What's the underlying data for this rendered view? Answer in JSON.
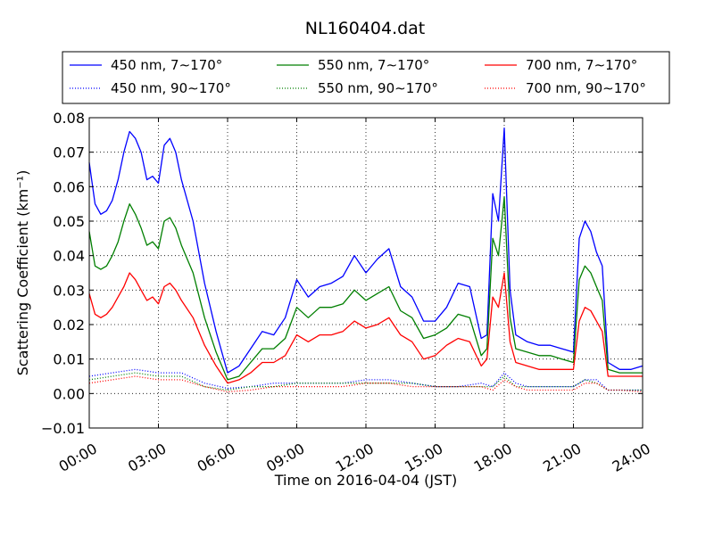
{
  "chart_data": {
    "type": "line",
    "title": "NL160404.dat",
    "xlabel": "Time on 2016-04-04 (JST)",
    "ylabel": "Scattering Coefficient (km⁻¹)",
    "x_unit": "hours",
    "xlim": [
      0,
      24
    ],
    "ylim": [
      -0.01,
      0.08
    ],
    "x_ticks": [
      {
        "value": 0,
        "label": "00:00"
      },
      {
        "value": 3,
        "label": "03:00"
      },
      {
        "value": 6,
        "label": "06:00"
      },
      {
        "value": 9,
        "label": "09:00"
      },
      {
        "value": 12,
        "label": "12:00"
      },
      {
        "value": 15,
        "label": "15:00"
      },
      {
        "value": 18,
        "label": "18:00"
      },
      {
        "value": 21,
        "label": "21:00"
      },
      {
        "value": 24,
        "label": "24:00"
      }
    ],
    "y_ticks": [
      {
        "value": -0.01,
        "label": "−0.01"
      },
      {
        "value": 0.0,
        "label": "0.00"
      },
      {
        "value": 0.01,
        "label": "0.01"
      },
      {
        "value": 0.02,
        "label": "0.02"
      },
      {
        "value": 0.03,
        "label": "0.03"
      },
      {
        "value": 0.04,
        "label": "0.04"
      },
      {
        "value": 0.05,
        "label": "0.05"
      },
      {
        "value": 0.06,
        "label": "0.06"
      },
      {
        "value": 0.07,
        "label": "0.07"
      },
      {
        "value": 0.08,
        "label": "0.08"
      }
    ],
    "grid": true,
    "legend": "top-outside",
    "series": [
      {
        "name": "450 nm, 7∼170°",
        "color": "#0000ff",
        "style": "solid",
        "x": [
          0,
          0.25,
          0.5,
          0.75,
          1,
          1.25,
          1.5,
          1.75,
          2,
          2.25,
          2.5,
          2.75,
          3,
          3.25,
          3.5,
          3.75,
          4,
          4.5,
          5,
          5.5,
          6,
          6.5,
          7,
          7.5,
          8,
          8.5,
          9,
          9.5,
          10,
          10.5,
          11,
          11.5,
          12,
          12.5,
          13,
          13.5,
          14,
          14.5,
          15,
          15.5,
          16,
          16.5,
          17,
          17.25,
          17.5,
          17.75,
          18,
          18.25,
          18.5,
          19,
          19.5,
          20,
          20.5,
          21,
          21.25,
          21.5,
          21.75,
          22,
          22.25,
          22.5,
          23,
          23.5,
          24
        ],
        "y": [
          0.067,
          0.055,
          0.052,
          0.053,
          0.056,
          0.062,
          0.07,
          0.076,
          0.074,
          0.07,
          0.062,
          0.063,
          0.061,
          0.072,
          0.074,
          0.07,
          0.062,
          0.05,
          0.032,
          0.018,
          0.006,
          0.008,
          0.013,
          0.018,
          0.017,
          0.022,
          0.033,
          0.028,
          0.031,
          0.032,
          0.034,
          0.04,
          0.035,
          0.039,
          0.042,
          0.031,
          0.028,
          0.021,
          0.021,
          0.025,
          0.032,
          0.031,
          0.016,
          0.017,
          0.058,
          0.05,
          0.077,
          0.03,
          0.017,
          0.015,
          0.014,
          0.014,
          0.013,
          0.012,
          0.045,
          0.05,
          0.047,
          0.041,
          0.037,
          0.009,
          0.007,
          0.007,
          0.008
        ]
      },
      {
        "name": "450 nm, 90∼170°",
        "color": "#0000ff",
        "style": "dotted",
        "x": [
          0,
          1,
          2,
          3,
          4,
          5,
          6,
          7,
          8,
          9,
          10,
          11,
          12,
          13,
          14,
          15,
          16,
          17,
          17.5,
          18,
          18.5,
          19,
          20,
          21,
          21.5,
          22,
          22.5,
          23,
          24
        ],
        "y": [
          0.005,
          0.006,
          0.007,
          0.006,
          0.006,
          0.003,
          0.0015,
          0.002,
          0.003,
          0.003,
          0.003,
          0.003,
          0.004,
          0.004,
          0.003,
          0.002,
          0.002,
          0.003,
          0.002,
          0.006,
          0.003,
          0.002,
          0.002,
          0.002,
          0.004,
          0.004,
          0.001,
          0.001,
          0.001
        ]
      },
      {
        "name": "550 nm, 7∼170°",
        "color": "#007f00",
        "style": "solid",
        "x": [
          0,
          0.25,
          0.5,
          0.75,
          1,
          1.25,
          1.5,
          1.75,
          2,
          2.25,
          2.5,
          2.75,
          3,
          3.25,
          3.5,
          3.75,
          4,
          4.5,
          5,
          5.5,
          6,
          6.5,
          7,
          7.5,
          8,
          8.5,
          9,
          9.5,
          10,
          10.5,
          11,
          11.5,
          12,
          12.5,
          13,
          13.5,
          14,
          14.5,
          15,
          15.5,
          16,
          16.5,
          17,
          17.25,
          17.5,
          17.75,
          18,
          18.25,
          18.5,
          19,
          19.5,
          20,
          20.5,
          21,
          21.25,
          21.5,
          21.75,
          22,
          22.25,
          22.5,
          23,
          23.5,
          24
        ],
        "y": [
          0.047,
          0.037,
          0.036,
          0.037,
          0.04,
          0.044,
          0.05,
          0.055,
          0.052,
          0.048,
          0.043,
          0.044,
          0.042,
          0.05,
          0.051,
          0.048,
          0.043,
          0.035,
          0.022,
          0.012,
          0.004,
          0.005,
          0.009,
          0.013,
          0.013,
          0.016,
          0.025,
          0.022,
          0.025,
          0.025,
          0.026,
          0.03,
          0.027,
          0.029,
          0.031,
          0.024,
          0.022,
          0.016,
          0.017,
          0.019,
          0.023,
          0.022,
          0.011,
          0.013,
          0.045,
          0.04,
          0.057,
          0.022,
          0.013,
          0.012,
          0.011,
          0.011,
          0.01,
          0.009,
          0.033,
          0.037,
          0.035,
          0.031,
          0.027,
          0.007,
          0.006,
          0.006,
          0.006
        ]
      },
      {
        "name": "550 nm, 90∼170°",
        "color": "#007f00",
        "style": "dotted",
        "x": [
          0,
          1,
          2,
          3,
          4,
          5,
          6,
          7,
          8,
          9,
          10,
          11,
          12,
          13,
          14,
          15,
          16,
          17,
          17.5,
          18,
          18.5,
          19,
          20,
          21,
          21.5,
          22,
          22.5,
          23,
          24
        ],
        "y": [
          0.004,
          0.005,
          0.006,
          0.005,
          0.005,
          0.002,
          0.001,
          0.002,
          0.002,
          0.003,
          0.003,
          0.003,
          0.003,
          0.003,
          0.003,
          0.002,
          0.002,
          0.002,
          0.002,
          0.005,
          0.002,
          0.002,
          0.002,
          0.002,
          0.004,
          0.003,
          0.001,
          0.001,
          0.001
        ]
      },
      {
        "name": "700 nm, 7∼170°",
        "color": "#ff0000",
        "style": "solid",
        "x": [
          0,
          0.25,
          0.5,
          0.75,
          1,
          1.25,
          1.5,
          1.75,
          2,
          2.25,
          2.5,
          2.75,
          3,
          3.25,
          3.5,
          3.75,
          4,
          4.5,
          5,
          5.5,
          6,
          6.5,
          7,
          7.5,
          8,
          8.5,
          9,
          9.5,
          10,
          10.5,
          11,
          11.5,
          12,
          12.5,
          13,
          13.5,
          14,
          14.5,
          15,
          15.5,
          16,
          16.5,
          17,
          17.25,
          17.5,
          17.75,
          18,
          18.25,
          18.5,
          19,
          19.5,
          20,
          20.5,
          21,
          21.25,
          21.5,
          21.75,
          22,
          22.25,
          22.5,
          23,
          23.5,
          24
        ],
        "y": [
          0.029,
          0.023,
          0.022,
          0.023,
          0.025,
          0.028,
          0.031,
          0.035,
          0.033,
          0.03,
          0.027,
          0.028,
          0.026,
          0.031,
          0.032,
          0.03,
          0.027,
          0.022,
          0.014,
          0.008,
          0.003,
          0.004,
          0.006,
          0.009,
          0.009,
          0.011,
          0.017,
          0.015,
          0.017,
          0.017,
          0.018,
          0.021,
          0.019,
          0.02,
          0.022,
          0.017,
          0.015,
          0.01,
          0.011,
          0.014,
          0.016,
          0.015,
          0.008,
          0.01,
          0.028,
          0.025,
          0.035,
          0.015,
          0.009,
          0.008,
          0.007,
          0.007,
          0.007,
          0.007,
          0.021,
          0.025,
          0.024,
          0.021,
          0.018,
          0.005,
          0.005,
          0.005,
          0.005
        ]
      },
      {
        "name": "700 nm, 90∼170°",
        "color": "#ff0000",
        "style": "dotted",
        "x": [
          0,
          1,
          2,
          3,
          4,
          5,
          6,
          7,
          8,
          9,
          10,
          11,
          12,
          13,
          14,
          15,
          16,
          17,
          17.5,
          18,
          18.5,
          19,
          20,
          21,
          21.5,
          22,
          22.5,
          23,
          24
        ],
        "y": [
          0.003,
          0.004,
          0.005,
          0.004,
          0.004,
          0.002,
          0.0005,
          0.001,
          0.002,
          0.002,
          0.002,
          0.002,
          0.003,
          0.003,
          0.002,
          0.002,
          0.002,
          0.002,
          0.001,
          0.004,
          0.002,
          0.001,
          0.001,
          0.001,
          0.003,
          0.003,
          0.001,
          0.001,
          0.0005
        ]
      }
    ]
  }
}
